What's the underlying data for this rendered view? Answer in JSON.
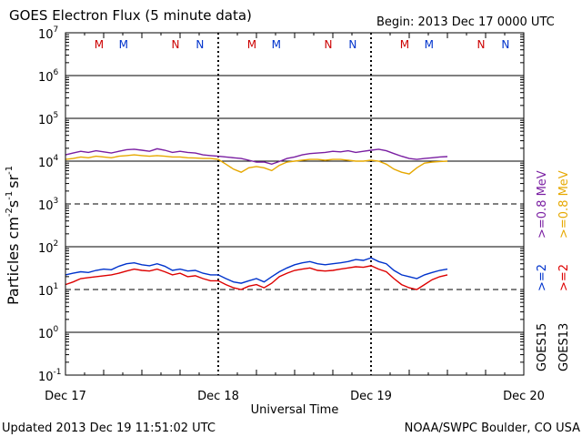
{
  "chart_data": {
    "type": "line",
    "title": "GOES Electron Flux (5 minute data)",
    "begin_label": "Begin: 2013 Dec 17 0000 UTC",
    "xlabel": "Universal Time",
    "ylabel_main": "Particles cm",
    "ylabel_sup1": "-2",
    "ylabel_mid1": "s",
    "ylabel_sup2": "-1",
    "ylabel_mid2": "sr",
    "ylabel_sup3": "-1",
    "yscale": "log",
    "ylim": [
      0.1,
      10000000
    ],
    "xlim_days": [
      0,
      3
    ],
    "x_ticks": [
      {
        "day": 0,
        "label": "Dec 17"
      },
      {
        "day": 1,
        "label": "Dec 18"
      },
      {
        "day": 2,
        "label": "Dec 19"
      },
      {
        "day": 3,
        "label": "Dec 20"
      }
    ],
    "y_ticks": [
      {
        "exp": 7,
        "base": "10",
        "sup": "7"
      },
      {
        "exp": 6,
        "base": "10",
        "sup": "6"
      },
      {
        "exp": 5,
        "base": "10",
        "sup": "5"
      },
      {
        "exp": 4,
        "base": "10",
        "sup": "4"
      },
      {
        "exp": 3,
        "base": "10",
        "sup": "3"
      },
      {
        "exp": 2,
        "base": "10",
        "sup": "2"
      },
      {
        "exp": 1,
        "base": "10",
        "sup": "1"
      },
      {
        "exp": 0,
        "base": "10",
        "sup": "0"
      },
      {
        "exp": -1,
        "base": "10",
        "sup": "-1"
      }
    ],
    "threshold_levels": [
      1000,
      10
    ],
    "mn_markers": [
      {
        "day": 0.22,
        "letter": "M",
        "color": "#cc0000"
      },
      {
        "day": 0.38,
        "letter": "M",
        "color": "#0033cc"
      },
      {
        "day": 0.72,
        "letter": "N",
        "color": "#cc0000"
      },
      {
        "day": 0.88,
        "letter": "N",
        "color": "#0033cc"
      },
      {
        "day": 1.22,
        "letter": "M",
        "color": "#cc0000"
      },
      {
        "day": 1.38,
        "letter": "M",
        "color": "#0033cc"
      },
      {
        "day": 1.72,
        "letter": "N",
        "color": "#cc0000"
      },
      {
        "day": 1.88,
        "letter": "N",
        "color": "#0033cc"
      },
      {
        "day": 2.22,
        "letter": "M",
        "color": "#cc0000"
      },
      {
        "day": 2.38,
        "letter": "M",
        "color": "#0033cc"
      },
      {
        "day": 2.72,
        "letter": "N",
        "color": "#cc0000"
      },
      {
        "day": 2.88,
        "letter": "N",
        "color": "#0033cc"
      }
    ],
    "series": [
      {
        "name": "GOES15 >=0.8 MeV",
        "color": "#7a1fa2",
        "x_days": [
          0.0,
          0.05,
          0.1,
          0.15,
          0.2,
          0.25,
          0.3,
          0.35,
          0.4,
          0.45,
          0.5,
          0.55,
          0.6,
          0.65,
          0.7,
          0.75,
          0.8,
          0.85,
          0.9,
          0.95,
          1.0,
          1.05,
          1.1,
          1.15,
          1.2,
          1.25,
          1.3,
          1.35,
          1.4,
          1.45,
          1.5,
          1.55,
          1.6,
          1.65,
          1.7,
          1.75,
          1.8,
          1.85,
          1.9,
          1.95,
          2.0,
          2.05,
          2.1,
          2.15,
          2.2,
          2.25,
          2.3,
          2.35,
          2.4,
          2.45,
          2.5
        ],
        "values": [
          14000,
          15500,
          17000,
          16000,
          17500,
          16500,
          15500,
          17000,
          18500,
          19000,
          18000,
          17000,
          19500,
          18000,
          16000,
          17000,
          16000,
          15500,
          14000,
          13500,
          13000,
          12500,
          12000,
          11500,
          10500,
          9500,
          9500,
          8500,
          9800,
          11500,
          12500,
          14000,
          15000,
          15500,
          16000,
          17000,
          16500,
          17500,
          16000,
          17000,
          18000,
          19000,
          17500,
          15000,
          13000,
          11500,
          11000,
          11500,
          12000,
          12500,
          12800
        ]
      },
      {
        "name": "GOES13 >=0.8 MeV",
        "color": "#e6a800",
        "x_days": [
          0.0,
          0.05,
          0.1,
          0.15,
          0.2,
          0.25,
          0.3,
          0.35,
          0.4,
          0.45,
          0.5,
          0.55,
          0.6,
          0.65,
          0.7,
          0.75,
          0.8,
          0.85,
          0.9,
          0.95,
          1.0,
          1.05,
          1.1,
          1.15,
          1.2,
          1.25,
          1.3,
          1.35,
          1.4,
          1.45,
          1.5,
          1.55,
          1.6,
          1.65,
          1.7,
          1.75,
          1.8,
          1.85,
          1.9,
          1.95,
          2.0,
          2.05,
          2.1,
          2.15,
          2.2,
          2.25,
          2.3,
          2.35,
          2.4,
          2.45,
          2.5
        ],
        "values": [
          11000,
          11500,
          12500,
          12000,
          13000,
          12500,
          12000,
          13000,
          13500,
          14000,
          13500,
          13000,
          13500,
          13000,
          12500,
          12500,
          12000,
          11800,
          11500,
          11500,
          11000,
          8500,
          6500,
          5500,
          7000,
          7500,
          7000,
          6000,
          8000,
          9500,
          10000,
          10500,
          11000,
          11000,
          10500,
          11000,
          11000,
          10500,
          10000,
          10000,
          10500,
          10000,
          8500,
          6500,
          5500,
          5000,
          7000,
          9000,
          9500,
          9800,
          10000
        ]
      },
      {
        "name": "GOES15 >=2 MeV",
        "color": "#0033cc",
        "x_days": [
          0.0,
          0.05,
          0.1,
          0.15,
          0.2,
          0.25,
          0.3,
          0.35,
          0.4,
          0.45,
          0.5,
          0.55,
          0.6,
          0.65,
          0.7,
          0.75,
          0.8,
          0.85,
          0.9,
          0.95,
          1.0,
          1.05,
          1.1,
          1.15,
          1.2,
          1.25,
          1.3,
          1.35,
          1.4,
          1.45,
          1.5,
          1.55,
          1.6,
          1.65,
          1.7,
          1.75,
          1.8,
          1.85,
          1.9,
          1.95,
          2.0,
          2.05,
          2.1,
          2.15,
          2.2,
          2.25,
          2.3,
          2.35,
          2.4,
          2.45,
          2.5
        ],
        "values": [
          22,
          24,
          26,
          25,
          28,
          30,
          29,
          35,
          40,
          42,
          38,
          36,
          40,
          35,
          28,
          30,
          27,
          28,
          24,
          22,
          22,
          18,
          15,
          14,
          16,
          18,
          15,
          20,
          26,
          32,
          38,
          42,
          45,
          40,
          38,
          40,
          42,
          45,
          50,
          48,
          55,
          45,
          40,
          28,
          22,
          20,
          18,
          22,
          25,
          28,
          30
        ]
      },
      {
        "name": "GOES13 >=2 MeV",
        "color": "#dd0000",
        "x_days": [
          0.0,
          0.05,
          0.1,
          0.15,
          0.2,
          0.25,
          0.3,
          0.35,
          0.4,
          0.45,
          0.5,
          0.55,
          0.6,
          0.65,
          0.7,
          0.75,
          0.8,
          0.85,
          0.9,
          0.95,
          1.0,
          1.05,
          1.1,
          1.15,
          1.2,
          1.25,
          1.3,
          1.35,
          1.4,
          1.45,
          1.5,
          1.55,
          1.6,
          1.65,
          1.7,
          1.75,
          1.8,
          1.85,
          1.9,
          1.95,
          2.0,
          2.05,
          2.1,
          2.15,
          2.2,
          2.25,
          2.3,
          2.35,
          2.4,
          2.45,
          2.5
        ],
        "values": [
          13,
          15,
          18,
          19,
          20,
          21,
          22,
          24,
          27,
          30,
          28,
          27,
          30,
          26,
          22,
          24,
          20,
          21,
          18,
          16,
          16,
          13,
          11,
          10,
          12,
          13,
          11,
          14,
          20,
          24,
          28,
          30,
          32,
          28,
          27,
          28,
          30,
          32,
          34,
          33,
          36,
          30,
          26,
          18,
          13,
          11,
          10,
          13,
          17,
          20,
          22
        ]
      }
    ],
    "legend_right": [
      {
        "text": ">=0.8  MeV",
        "color": "#e6a800"
      },
      {
        "text": ">=0.8  MeV",
        "color": "#7a1fa2"
      },
      {
        "text": ">=2",
        "color": "#dd0000"
      },
      {
        "text": ">=2",
        "color": "#0033cc"
      },
      {
        "text": "GOES13",
        "color": "#000000"
      },
      {
        "text": "GOES15",
        "color": "#000000"
      }
    ]
  },
  "footer": {
    "updated": "Updated 2013 Dec 19 11:51:02 UTC",
    "credit": "NOAA/SWPC Boulder, CO USA"
  }
}
